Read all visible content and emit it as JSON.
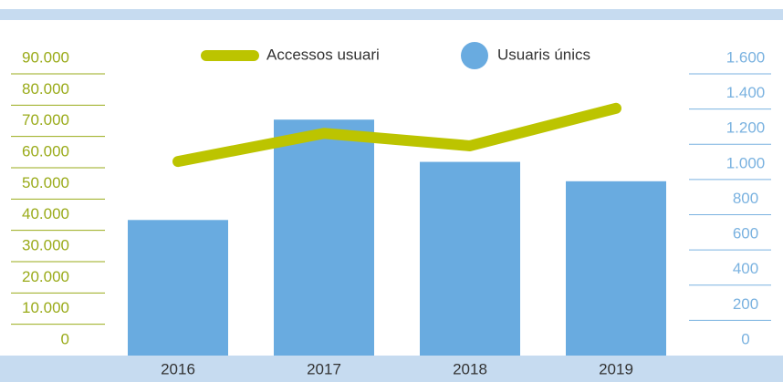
{
  "chart_data": {
    "type": "bar",
    "categories": [
      "2016",
      "2017",
      "2018",
      "2019"
    ],
    "series": [
      {
        "name": "Accessos usuari",
        "type": "line",
        "color": "#bcc400",
        "axis": "y",
        "values": [
          62000,
          71000,
          67000,
          79000
        ]
      },
      {
        "name": "Usuaris únics",
        "type": "bar",
        "color": "#69abe0",
        "axis": "y2",
        "values": [
          770,
          1340,
          1100,
          990
        ]
      }
    ],
    "ylim": [
      0,
      90000
    ],
    "yticks": [
      0,
      {
        "value": 10000,
        "label": "10.000"
      },
      {
        "value": 20000,
        "label": "20.000"
      },
      {
        "value": 30000,
        "label": "30.000"
      },
      {
        "value": 40000,
        "label": "40.000"
      },
      {
        "value": 50000,
        "label": "50.000"
      },
      {
        "value": 60000,
        "label": "60.000"
      },
      {
        "value": 70000,
        "label": "70.000"
      },
      {
        "value": 80000,
        "label": "80.000"
      },
      {
        "value": 90000,
        "label": "90.000"
      }
    ],
    "y2lim": [
      0,
      1600
    ],
    "y2ticks": [
      0,
      200,
      400,
      600,
      800,
      {
        "value": 1000,
        "label": "1.000"
      },
      {
        "value": 1200,
        "label": "1.200"
      },
      {
        "value": 1400,
        "label": "1.400"
      },
      {
        "value": 1600,
        "label": "1.600"
      }
    ],
    "yaxis_color": "#9aab1a",
    "y2axis_color": "#7ab2e0",
    "band_color": "#c6dbf0",
    "legend": "top"
  }
}
